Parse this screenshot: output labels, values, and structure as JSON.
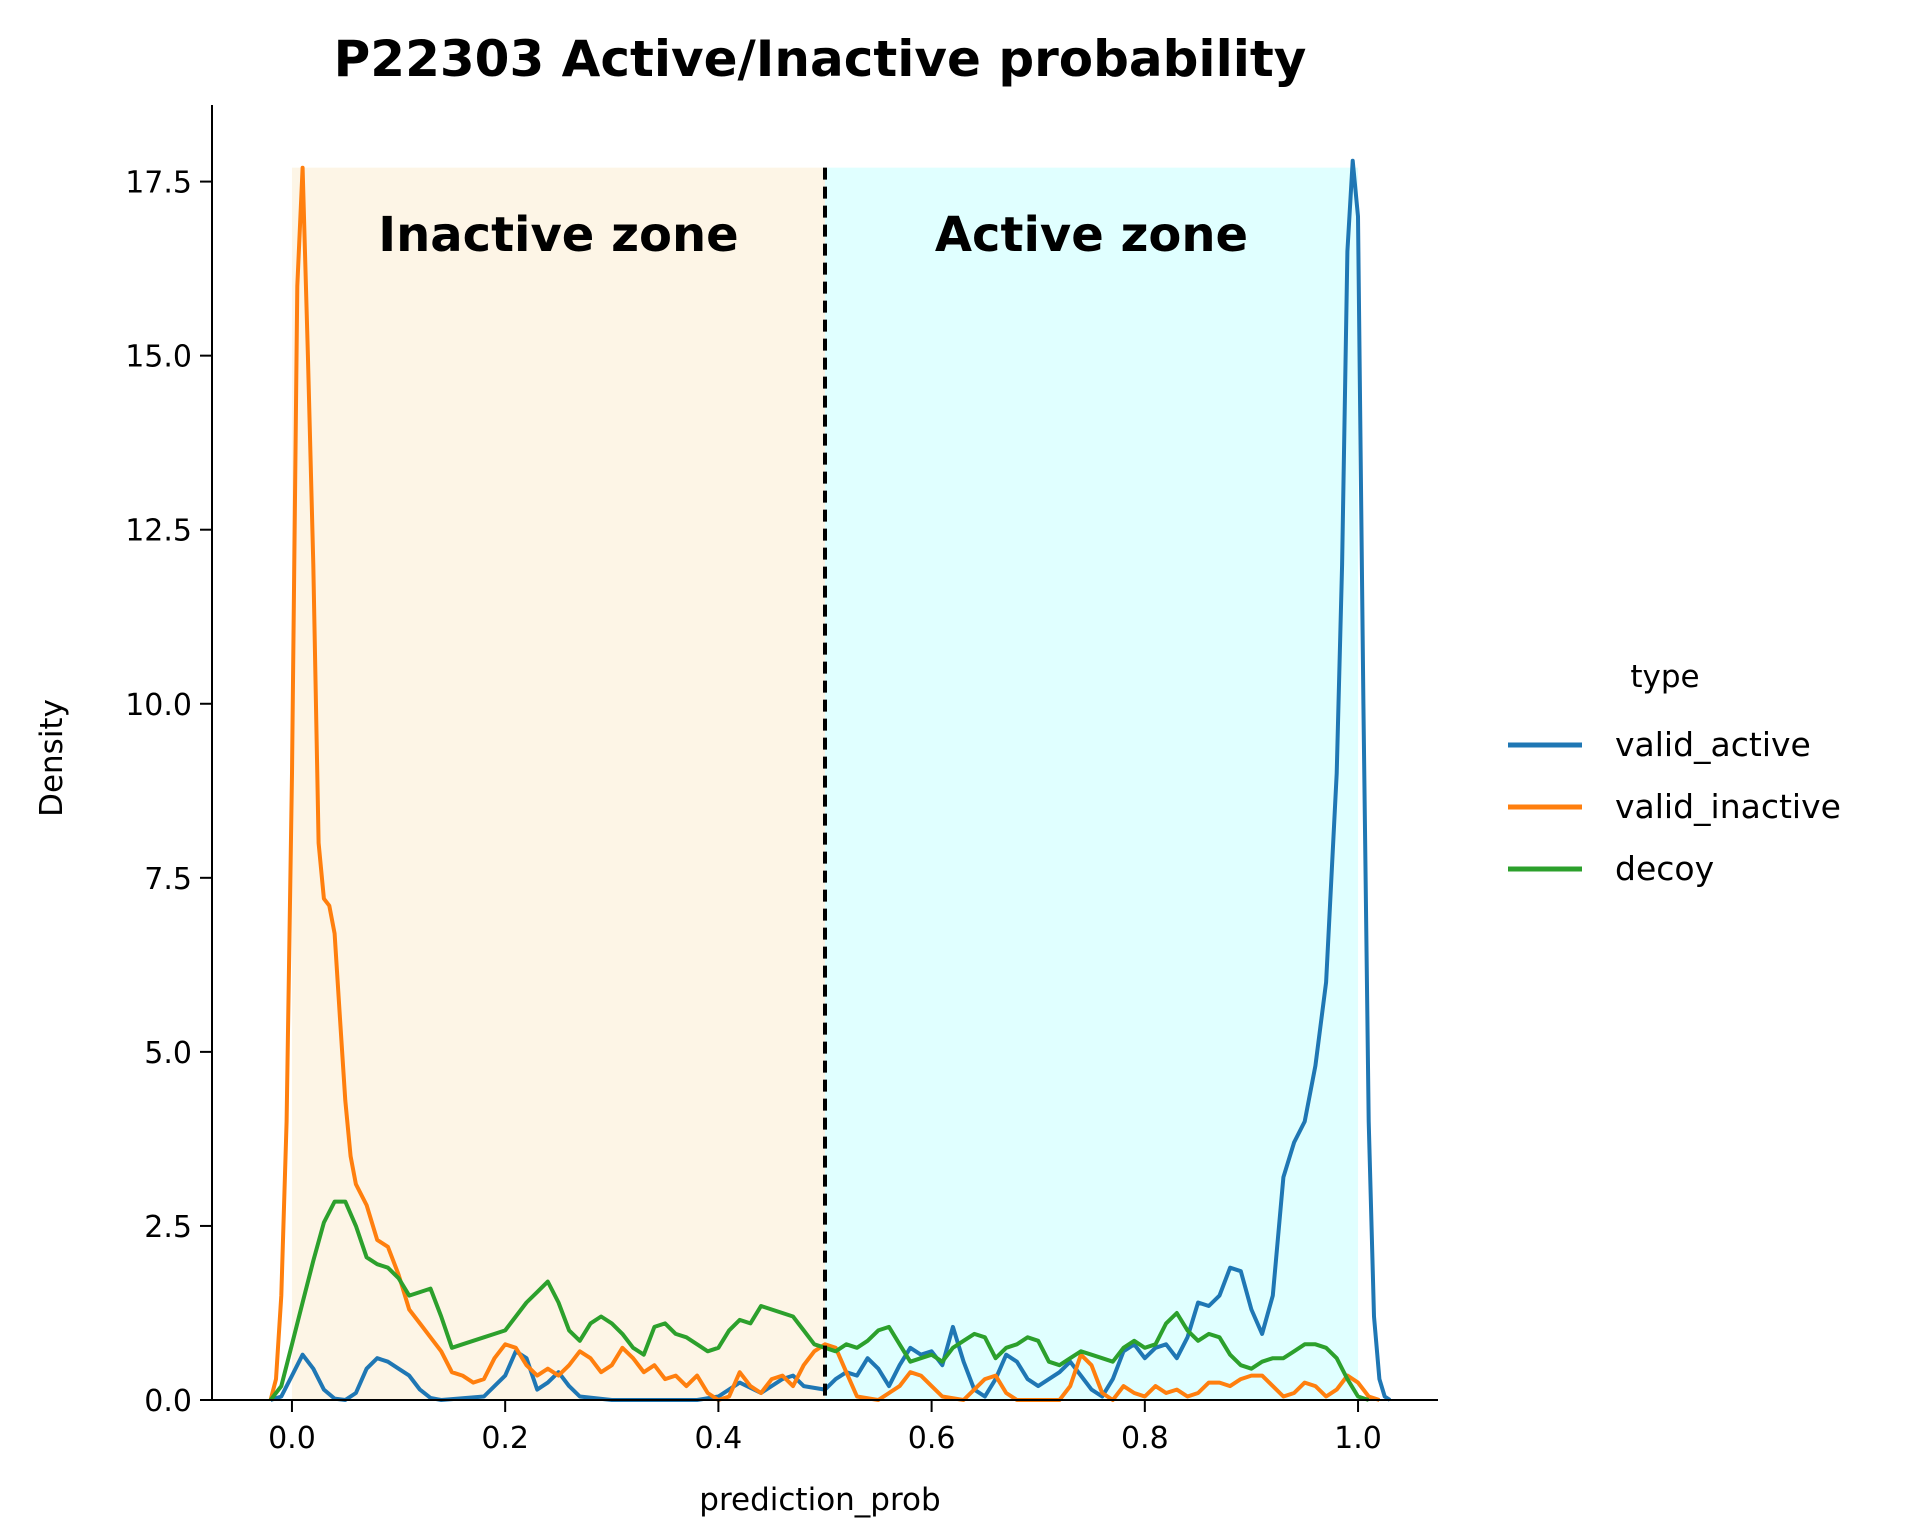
{
  "chart_data": {
    "type": "line",
    "title": "P22303  Active/Inactive probability",
    "xlabel": "prediction_prob",
    "ylabel": "Density",
    "xlim": [
      -0.075,
      1.075
    ],
    "ylim": [
      0,
      18.6
    ],
    "xticks": [
      0.0,
      0.2,
      0.4,
      0.6,
      0.8,
      1.0
    ],
    "xtick_labels": [
      "0.0",
      "0.2",
      "0.4",
      "0.6",
      "0.8",
      "1.0"
    ],
    "yticks": [
      0.0,
      2.5,
      5.0,
      7.5,
      10.0,
      12.5,
      15.0,
      17.5
    ],
    "ytick_labels": [
      "0.0",
      "2.5",
      "5.0",
      "7.5",
      "10.0",
      "12.5",
      "15.0",
      "17.5"
    ],
    "grid": false,
    "threshold": 0.5,
    "zones": [
      {
        "label": "Inactive zone",
        "x0": 0.0,
        "x1": 0.5,
        "y1": 17.7,
        "color": "#fdf5e6"
      },
      {
        "label": "Active zone",
        "x0": 0.5,
        "x1": 1.0,
        "y1": 17.7,
        "color": "#e0ffff"
      }
    ],
    "legend": {
      "title": "type",
      "placement": "right"
    },
    "series": [
      {
        "name": "valid_active",
        "color": "#1f77b4",
        "points": [
          [
            -0.02,
            0
          ],
          [
            -0.01,
            0.05
          ],
          [
            0.0,
            0.35
          ],
          [
            0.01,
            0.65
          ],
          [
            0.02,
            0.45
          ],
          [
            0.03,
            0.15
          ],
          [
            0.04,
            0.02
          ],
          [
            0.05,
            0.0
          ],
          [
            0.06,
            0.1
          ],
          [
            0.07,
            0.45
          ],
          [
            0.08,
            0.6
          ],
          [
            0.09,
            0.55
          ],
          [
            0.1,
            0.45
          ],
          [
            0.11,
            0.35
          ],
          [
            0.12,
            0.15
          ],
          [
            0.13,
            0.03
          ],
          [
            0.14,
            0.0
          ],
          [
            0.18,
            0.05
          ],
          [
            0.2,
            0.35
          ],
          [
            0.21,
            0.7
          ],
          [
            0.22,
            0.6
          ],
          [
            0.23,
            0.15
          ],
          [
            0.24,
            0.25
          ],
          [
            0.25,
            0.4
          ],
          [
            0.26,
            0.2
          ],
          [
            0.27,
            0.05
          ],
          [
            0.3,
            0.0
          ],
          [
            0.38,
            0.0
          ],
          [
            0.4,
            0.05
          ],
          [
            0.42,
            0.25
          ],
          [
            0.44,
            0.1
          ],
          [
            0.46,
            0.3
          ],
          [
            0.47,
            0.35
          ],
          [
            0.48,
            0.2
          ],
          [
            0.5,
            0.15
          ],
          [
            0.51,
            0.3
          ],
          [
            0.52,
            0.4
          ],
          [
            0.53,
            0.35
          ],
          [
            0.54,
            0.6
          ],
          [
            0.55,
            0.45
          ],
          [
            0.56,
            0.2
          ],
          [
            0.57,
            0.5
          ],
          [
            0.58,
            0.75
          ],
          [
            0.59,
            0.65
          ],
          [
            0.6,
            0.7
          ],
          [
            0.61,
            0.5
          ],
          [
            0.62,
            1.05
          ],
          [
            0.63,
            0.55
          ],
          [
            0.64,
            0.15
          ],
          [
            0.65,
            0.05
          ],
          [
            0.66,
            0.3
          ],
          [
            0.67,
            0.65
          ],
          [
            0.68,
            0.55
          ],
          [
            0.69,
            0.3
          ],
          [
            0.7,
            0.2
          ],
          [
            0.72,
            0.4
          ],
          [
            0.73,
            0.55
          ],
          [
            0.74,
            0.35
          ],
          [
            0.75,
            0.15
          ],
          [
            0.76,
            0.05
          ],
          [
            0.77,
            0.3
          ],
          [
            0.78,
            0.7
          ],
          [
            0.79,
            0.8
          ],
          [
            0.8,
            0.6
          ],
          [
            0.81,
            0.75
          ],
          [
            0.82,
            0.8
          ],
          [
            0.83,
            0.6
          ],
          [
            0.84,
            0.9
          ],
          [
            0.85,
            1.4
          ],
          [
            0.86,
            1.35
          ],
          [
            0.87,
            1.5
          ],
          [
            0.88,
            1.9
          ],
          [
            0.89,
            1.85
          ],
          [
            0.9,
            1.3
          ],
          [
            0.91,
            0.95
          ],
          [
            0.92,
            1.5
          ],
          [
            0.93,
            3.2
          ],
          [
            0.94,
            3.7
          ],
          [
            0.95,
            4.0
          ],
          [
            0.96,
            4.8
          ],
          [
            0.97,
            6.0
          ],
          [
            0.98,
            9.0
          ],
          [
            0.985,
            12.0
          ],
          [
            0.99,
            16.5
          ],
          [
            0.995,
            17.8
          ],
          [
            1.0,
            17.0
          ],
          [
            1.005,
            10.0
          ],
          [
            1.01,
            4.0
          ],
          [
            1.015,
            1.2
          ],
          [
            1.02,
            0.3
          ],
          [
            1.025,
            0.05
          ],
          [
            1.03,
            0
          ]
        ]
      },
      {
        "name": "valid_inactive",
        "color": "#ff7f0e",
        "points": [
          [
            -0.02,
            0
          ],
          [
            -0.015,
            0.3
          ],
          [
            -0.01,
            1.5
          ],
          [
            -0.005,
            4.0
          ],
          [
            0.0,
            9.0
          ],
          [
            0.005,
            16.0
          ],
          [
            0.01,
            17.7
          ],
          [
            0.015,
            15.0
          ],
          [
            0.02,
            12.0
          ],
          [
            0.025,
            8.0
          ],
          [
            0.03,
            7.2
          ],
          [
            0.035,
            7.1
          ],
          [
            0.04,
            6.7
          ],
          [
            0.045,
            5.5
          ],
          [
            0.05,
            4.3
          ],
          [
            0.055,
            3.5
          ],
          [
            0.06,
            3.1
          ],
          [
            0.07,
            2.8
          ],
          [
            0.08,
            2.3
          ],
          [
            0.09,
            2.2
          ],
          [
            0.1,
            1.8
          ],
          [
            0.11,
            1.3
          ],
          [
            0.12,
            1.1
          ],
          [
            0.13,
            0.9
          ],
          [
            0.14,
            0.7
          ],
          [
            0.15,
            0.4
          ],
          [
            0.16,
            0.35
          ],
          [
            0.17,
            0.25
          ],
          [
            0.18,
            0.3
          ],
          [
            0.19,
            0.6
          ],
          [
            0.2,
            0.8
          ],
          [
            0.21,
            0.75
          ],
          [
            0.22,
            0.5
          ],
          [
            0.23,
            0.35
          ],
          [
            0.24,
            0.45
          ],
          [
            0.25,
            0.35
          ],
          [
            0.26,
            0.5
          ],
          [
            0.27,
            0.7
          ],
          [
            0.28,
            0.6
          ],
          [
            0.29,
            0.4
          ],
          [
            0.3,
            0.5
          ],
          [
            0.31,
            0.75
          ],
          [
            0.32,
            0.6
          ],
          [
            0.33,
            0.4
          ],
          [
            0.34,
            0.5
          ],
          [
            0.35,
            0.3
          ],
          [
            0.36,
            0.35
          ],
          [
            0.37,
            0.2
          ],
          [
            0.38,
            0.35
          ],
          [
            0.39,
            0.1
          ],
          [
            0.4,
            0.0
          ],
          [
            0.41,
            0.05
          ],
          [
            0.42,
            0.4
          ],
          [
            0.43,
            0.2
          ],
          [
            0.44,
            0.1
          ],
          [
            0.45,
            0.3
          ],
          [
            0.46,
            0.35
          ],
          [
            0.47,
            0.2
          ],
          [
            0.48,
            0.5
          ],
          [
            0.49,
            0.7
          ],
          [
            0.5,
            0.8
          ],
          [
            0.51,
            0.75
          ],
          [
            0.52,
            0.4
          ],
          [
            0.53,
            0.05
          ],
          [
            0.55,
            0.0
          ],
          [
            0.57,
            0.2
          ],
          [
            0.58,
            0.4
          ],
          [
            0.59,
            0.35
          ],
          [
            0.6,
            0.2
          ],
          [
            0.61,
            0.05
          ],
          [
            0.63,
            0.0
          ],
          [
            0.65,
            0.3
          ],
          [
            0.66,
            0.35
          ],
          [
            0.67,
            0.1
          ],
          [
            0.68,
            0.0
          ],
          [
            0.72,
            0.0
          ],
          [
            0.73,
            0.2
          ],
          [
            0.74,
            0.65
          ],
          [
            0.75,
            0.5
          ],
          [
            0.76,
            0.1
          ],
          [
            0.77,
            0.0
          ],
          [
            0.78,
            0.2
          ],
          [
            0.79,
            0.1
          ],
          [
            0.8,
            0.05
          ],
          [
            0.81,
            0.2
          ],
          [
            0.82,
            0.1
          ],
          [
            0.83,
            0.15
          ],
          [
            0.84,
            0.05
          ],
          [
            0.85,
            0.1
          ],
          [
            0.86,
            0.25
          ],
          [
            0.87,
            0.25
          ],
          [
            0.88,
            0.2
          ],
          [
            0.89,
            0.3
          ],
          [
            0.9,
            0.35
          ],
          [
            0.91,
            0.35
          ],
          [
            0.92,
            0.2
          ],
          [
            0.93,
            0.05
          ],
          [
            0.94,
            0.1
          ],
          [
            0.95,
            0.25
          ],
          [
            0.96,
            0.2
          ],
          [
            0.97,
            0.05
          ],
          [
            0.98,
            0.15
          ],
          [
            0.99,
            0.35
          ],
          [
            1.0,
            0.25
          ],
          [
            1.01,
            0.05
          ],
          [
            1.02,
            0
          ]
        ]
      },
      {
        "name": "decoy",
        "color": "#2ca02c",
        "points": [
          [
            -0.02,
            0
          ],
          [
            -0.01,
            0.2
          ],
          [
            0.0,
            0.8
          ],
          [
            0.01,
            1.4
          ],
          [
            0.02,
            2.0
          ],
          [
            0.03,
            2.55
          ],
          [
            0.04,
            2.85
          ],
          [
            0.05,
            2.85
          ],
          [
            0.06,
            2.5
          ],
          [
            0.07,
            2.05
          ],
          [
            0.08,
            1.95
          ],
          [
            0.09,
            1.9
          ],
          [
            0.1,
            1.75
          ],
          [
            0.11,
            1.5
          ],
          [
            0.12,
            1.55
          ],
          [
            0.13,
            1.6
          ],
          [
            0.14,
            1.2
          ],
          [
            0.15,
            0.75
          ],
          [
            0.16,
            0.8
          ],
          [
            0.17,
            0.85
          ],
          [
            0.18,
            0.9
          ],
          [
            0.19,
            0.95
          ],
          [
            0.2,
            1.0
          ],
          [
            0.21,
            1.2
          ],
          [
            0.22,
            1.4
          ],
          [
            0.23,
            1.55
          ],
          [
            0.24,
            1.7
          ],
          [
            0.25,
            1.4
          ],
          [
            0.26,
            1.0
          ],
          [
            0.27,
            0.85
          ],
          [
            0.28,
            1.1
          ],
          [
            0.29,
            1.2
          ],
          [
            0.3,
            1.1
          ],
          [
            0.31,
            0.95
          ],
          [
            0.32,
            0.75
          ],
          [
            0.33,
            0.65
          ],
          [
            0.34,
            1.05
          ],
          [
            0.35,
            1.1
          ],
          [
            0.36,
            0.95
          ],
          [
            0.37,
            0.9
          ],
          [
            0.38,
            0.8
          ],
          [
            0.39,
            0.7
          ],
          [
            0.4,
            0.75
          ],
          [
            0.41,
            1.0
          ],
          [
            0.42,
            1.15
          ],
          [
            0.43,
            1.1
          ],
          [
            0.44,
            1.35
          ],
          [
            0.45,
            1.3
          ],
          [
            0.46,
            1.25
          ],
          [
            0.47,
            1.2
          ],
          [
            0.48,
            1.0
          ],
          [
            0.49,
            0.8
          ],
          [
            0.5,
            0.75
          ],
          [
            0.51,
            0.7
          ],
          [
            0.52,
            0.8
          ],
          [
            0.53,
            0.75
          ],
          [
            0.54,
            0.85
          ],
          [
            0.55,
            1.0
          ],
          [
            0.56,
            1.05
          ],
          [
            0.57,
            0.8
          ],
          [
            0.58,
            0.55
          ],
          [
            0.59,
            0.6
          ],
          [
            0.6,
            0.65
          ],
          [
            0.61,
            0.55
          ],
          [
            0.62,
            0.75
          ],
          [
            0.63,
            0.85
          ],
          [
            0.64,
            0.95
          ],
          [
            0.65,
            0.9
          ],
          [
            0.66,
            0.6
          ],
          [
            0.67,
            0.75
          ],
          [
            0.68,
            0.8
          ],
          [
            0.69,
            0.9
          ],
          [
            0.7,
            0.85
          ],
          [
            0.71,
            0.55
          ],
          [
            0.72,
            0.5
          ],
          [
            0.73,
            0.6
          ],
          [
            0.74,
            0.7
          ],
          [
            0.75,
            0.65
          ],
          [
            0.76,
            0.6
          ],
          [
            0.77,
            0.55
          ],
          [
            0.78,
            0.75
          ],
          [
            0.79,
            0.85
          ],
          [
            0.8,
            0.75
          ],
          [
            0.81,
            0.8
          ],
          [
            0.82,
            1.1
          ],
          [
            0.83,
            1.25
          ],
          [
            0.84,
            1.0
          ],
          [
            0.85,
            0.85
          ],
          [
            0.86,
            0.95
          ],
          [
            0.87,
            0.9
          ],
          [
            0.88,
            0.65
          ],
          [
            0.89,
            0.5
          ],
          [
            0.9,
            0.45
          ],
          [
            0.91,
            0.55
          ],
          [
            0.92,
            0.6
          ],
          [
            0.93,
            0.6
          ],
          [
            0.94,
            0.7
          ],
          [
            0.95,
            0.8
          ],
          [
            0.96,
            0.8
          ],
          [
            0.97,
            0.75
          ],
          [
            0.98,
            0.6
          ],
          [
            0.99,
            0.3
          ],
          [
            1.0,
            0.05
          ],
          [
            1.01,
            0
          ]
        ]
      }
    ]
  }
}
